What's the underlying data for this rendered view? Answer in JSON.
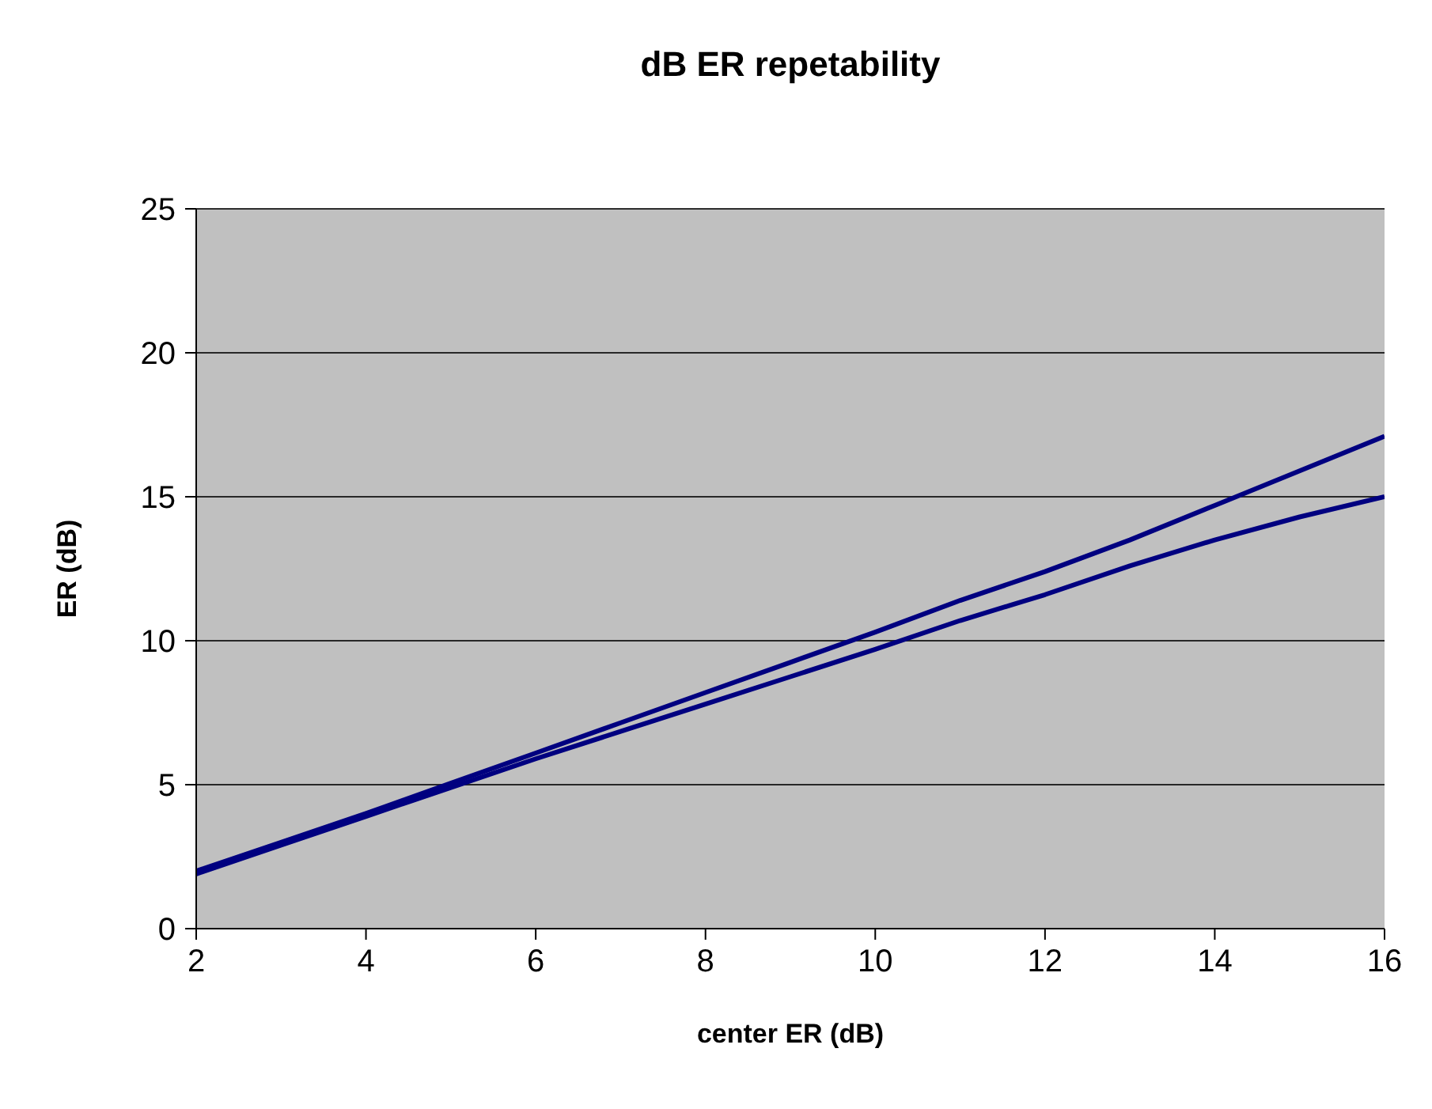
{
  "chart_data": {
    "type": "line",
    "title": "dB ER repetability",
    "xlabel": "center ER (dB)",
    "ylabel": "ER (dB)",
    "x": [
      2,
      3,
      4,
      5,
      6,
      7,
      8,
      9,
      10,
      11,
      12,
      13,
      14,
      15,
      16
    ],
    "series": [
      {
        "color": "#000080",
        "values": [
          2.0,
          3.0,
          4.0,
          5.05,
          6.1,
          7.15,
          8.2,
          9.25,
          10.3,
          11.4,
          12.4,
          13.5,
          14.7,
          15.9,
          17.1
        ]
      },
      {
        "color": "#000080",
        "values": [
          1.9,
          2.9,
          3.9,
          4.9,
          5.9,
          6.85,
          7.8,
          8.75,
          9.7,
          10.7,
          11.6,
          12.6,
          13.5,
          14.3,
          15.0
        ]
      }
    ],
    "xlim": [
      2,
      16
    ],
    "xticks": [
      2,
      4,
      6,
      8,
      10,
      12,
      14,
      16
    ],
    "ylim": [
      0,
      25
    ],
    "yticks": [
      0,
      5,
      10,
      15,
      20,
      25
    ],
    "grid": "y",
    "legend": false,
    "marker": "none",
    "line_style": "solid"
  }
}
